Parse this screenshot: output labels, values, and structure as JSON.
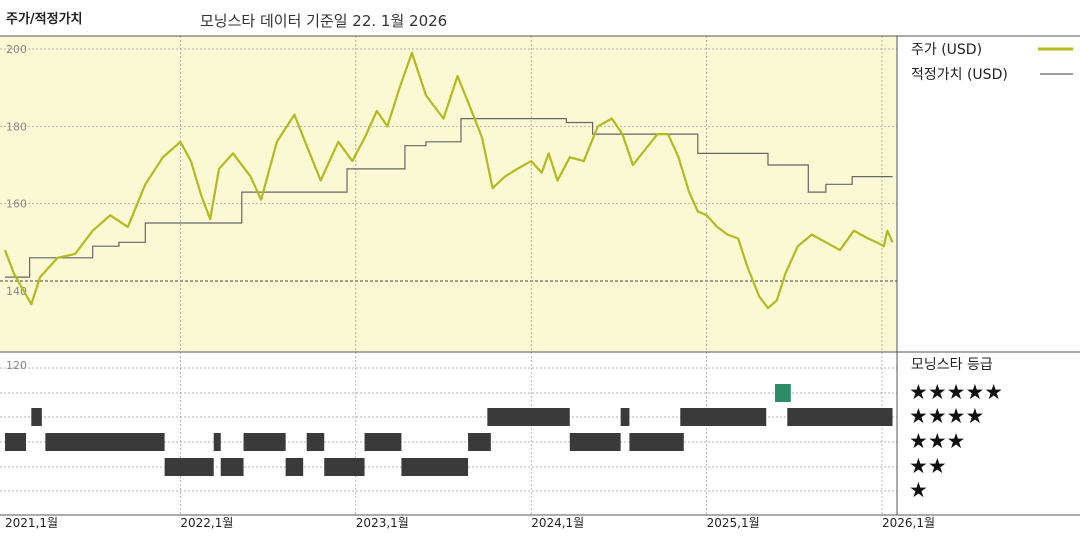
{
  "header": {
    "title": "주가/적정가치",
    "subtitle": "모닝스타 데이터 기준일 22. 1월 2026"
  },
  "legend": {
    "price": "주가 (USD)",
    "fair_value": "적정가치 (USD)",
    "rating_title": "모닝스타 등급",
    "stars": [
      "★★★★★",
      "★★★★",
      "★★★",
      "★★",
      "★"
    ]
  },
  "colors": {
    "price_line": "#b5b81f",
    "fair_value_line": "#666666",
    "plot_bg": "#fbf8d4",
    "rating_bar": "#3a3a3a",
    "rating_highlight": "#2e8b67"
  },
  "chart_data": {
    "type": "line",
    "title": "주가/적정가치",
    "y_ticks": [
      "200",
      "180",
      "160",
      "140",
      "120"
    ],
    "ylim": [
      130,
      203
    ],
    "x_ticks": [
      "2021,1월",
      "2022,1월",
      "2023,1월",
      "2024,1월",
      "2025,1월",
      "2026,1월"
    ],
    "series": [
      {
        "name": "주가 (USD)",
        "points": [
          [
            2021.0,
            148
          ],
          [
            2021.05,
            142
          ],
          [
            2021.1,
            138
          ],
          [
            2021.15,
            134
          ],
          [
            2021.2,
            141
          ],
          [
            2021.3,
            146
          ],
          [
            2021.4,
            147
          ],
          [
            2021.5,
            153
          ],
          [
            2021.6,
            157
          ],
          [
            2021.7,
            154
          ],
          [
            2021.8,
            165
          ],
          [
            2021.9,
            172
          ],
          [
            2022.0,
            176
          ],
          [
            2022.06,
            171
          ],
          [
            2022.12,
            162
          ],
          [
            2022.17,
            156
          ],
          [
            2022.22,
            169
          ],
          [
            2022.3,
            173
          ],
          [
            2022.4,
            167
          ],
          [
            2022.46,
            161
          ],
          [
            2022.55,
            176
          ],
          [
            2022.65,
            183
          ],
          [
            2022.72,
            175
          ],
          [
            2022.8,
            166
          ],
          [
            2022.9,
            176
          ],
          [
            2022.98,
            171
          ],
          [
            2023.05,
            177
          ],
          [
            2023.12,
            184
          ],
          [
            2023.18,
            180
          ],
          [
            2023.25,
            190
          ],
          [
            2023.32,
            199
          ],
          [
            2023.4,
            188
          ],
          [
            2023.5,
            182
          ],
          [
            2023.58,
            193
          ],
          [
            2023.66,
            184
          ],
          [
            2023.72,
            177
          ],
          [
            2023.78,
            164
          ],
          [
            2023.85,
            167
          ],
          [
            2023.92,
            169
          ],
          [
            2024.0,
            171
          ],
          [
            2024.06,
            168
          ],
          [
            2024.1,
            173
          ],
          [
            2024.15,
            166
          ],
          [
            2024.22,
            172
          ],
          [
            2024.3,
            171
          ],
          [
            2024.38,
            180
          ],
          [
            2024.46,
            182
          ],
          [
            2024.52,
            178
          ],
          [
            2024.58,
            170
          ],
          [
            2024.65,
            174
          ],
          [
            2024.72,
            178
          ],
          [
            2024.78,
            178
          ],
          [
            2024.84,
            172
          ],
          [
            2024.9,
            163
          ],
          [
            2024.95,
            158
          ],
          [
            2025.0,
            157
          ],
          [
            2025.06,
            154
          ],
          [
            2025.12,
            152
          ],
          [
            2025.18,
            151
          ],
          [
            2025.23,
            144
          ],
          [
            2025.3,
            136
          ],
          [
            2025.35,
            133
          ],
          [
            2025.4,
            135
          ],
          [
            2025.45,
            142
          ],
          [
            2025.52,
            149
          ],
          [
            2025.6,
            152
          ],
          [
            2025.68,
            150
          ],
          [
            2025.76,
            148
          ],
          [
            2025.84,
            153
          ],
          [
            2025.92,
            151
          ],
          [
            2025.97,
            150
          ],
          [
            2026.01,
            149
          ],
          [
            2026.03,
            153
          ],
          [
            2026.06,
            150
          ]
        ]
      },
      {
        "name": "적정가치 (USD)",
        "points": [
          [
            2021.0,
            141
          ],
          [
            2021.14,
            141
          ],
          [
            2021.14,
            146
          ],
          [
            2021.5,
            146
          ],
          [
            2021.5,
            149
          ],
          [
            2021.65,
            149
          ],
          [
            2021.65,
            150
          ],
          [
            2021.8,
            150
          ],
          [
            2021.8,
            155
          ],
          [
            2022.35,
            155
          ],
          [
            2022.35,
            163
          ],
          [
            2022.95,
            163
          ],
          [
            2022.95,
            169
          ],
          [
            2023.28,
            169
          ],
          [
            2023.28,
            175
          ],
          [
            2023.4,
            175
          ],
          [
            2023.4,
            176
          ],
          [
            2023.6,
            176
          ],
          [
            2023.6,
            182
          ],
          [
            2024.2,
            182
          ],
          [
            2024.2,
            181
          ],
          [
            2024.35,
            181
          ],
          [
            2024.35,
            178
          ],
          [
            2024.95,
            178
          ],
          [
            2024.95,
            173
          ],
          [
            2025.35,
            173
          ],
          [
            2025.35,
            170
          ],
          [
            2025.58,
            170
          ],
          [
            2025.58,
            163
          ],
          [
            2025.68,
            163
          ],
          [
            2025.68,
            165
          ],
          [
            2025.83,
            165
          ],
          [
            2025.83,
            167
          ],
          [
            2026.06,
            167
          ]
        ]
      }
    ],
    "rating_segments": [
      [
        5,
        [
          [
            2025.39,
            2025.48
          ]
        ]
      ],
      [
        4,
        [
          [
            2021.15,
            2021.21
          ],
          [
            2023.75,
            2024.22
          ],
          [
            2024.51,
            2024.56
          ],
          [
            2024.85,
            2025.34
          ],
          [
            2025.46,
            2026.06
          ]
        ]
      ],
      [
        3,
        [
          [
            2021.0,
            2021.12
          ],
          [
            2021.23,
            2021.91
          ],
          [
            2022.19,
            2022.23
          ],
          [
            2022.36,
            2022.6
          ],
          [
            2022.72,
            2022.82
          ],
          [
            2023.05,
            2023.26
          ],
          [
            2023.64,
            2023.77
          ],
          [
            2024.22,
            2024.51
          ],
          [
            2024.56,
            2024.87
          ]
        ]
      ],
      [
        2,
        [
          [
            2021.91,
            2022.19
          ],
          [
            2022.23,
            2022.36
          ],
          [
            2022.6,
            2022.7
          ],
          [
            2022.82,
            2023.05
          ],
          [
            2023.26,
            2023.64
          ]
        ]
      ]
    ]
  }
}
